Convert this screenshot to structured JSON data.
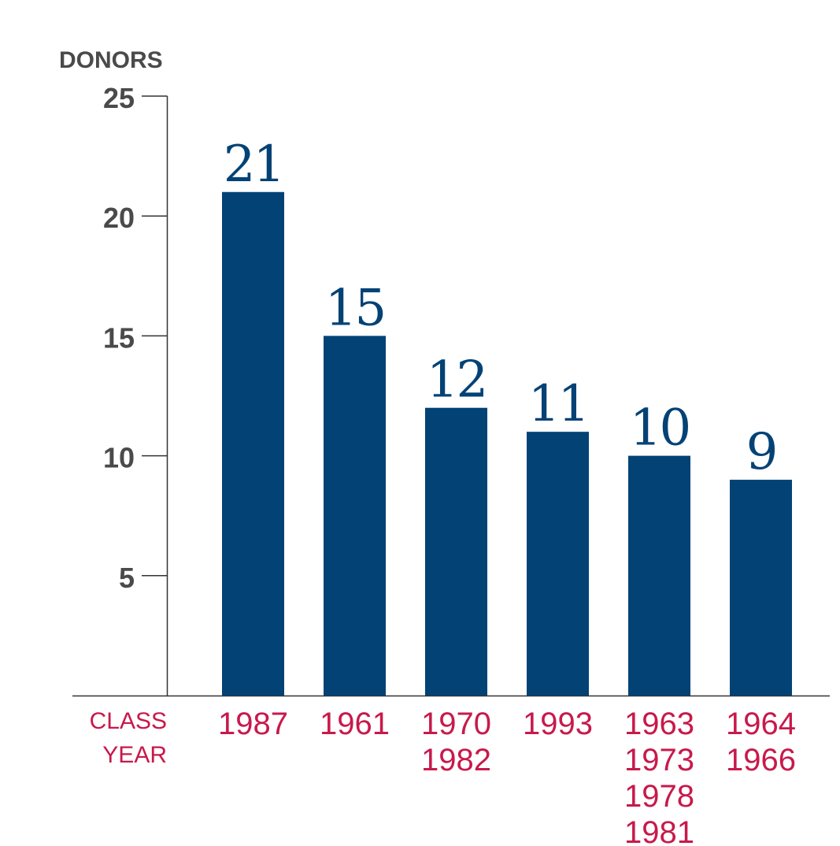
{
  "chart_data": {
    "type": "bar",
    "ylabel": "DONORS",
    "xlabel": [
      "CLASS",
      "YEAR"
    ],
    "ylim": [
      0,
      25
    ],
    "yticks": [
      5,
      10,
      15,
      20,
      25
    ],
    "categories": [
      [
        "1987"
      ],
      [
        "1961"
      ],
      [
        "1970",
        "1982"
      ],
      [
        "1993"
      ],
      [
        "1963",
        "1973",
        "1978",
        "1981"
      ],
      [
        "1964",
        "1966"
      ]
    ],
    "values": [
      21,
      15,
      12,
      11,
      10,
      9
    ],
    "value_labels": [
      "21",
      "15",
      "12",
      "11",
      "10",
      "9"
    ],
    "grid": false,
    "legend": "none",
    "colors": {
      "bar": "#034275",
      "value_label": "#034275",
      "axis_text": "#4a4a4a",
      "category_text": "#c8194b",
      "axis_line": "#333333"
    }
  }
}
